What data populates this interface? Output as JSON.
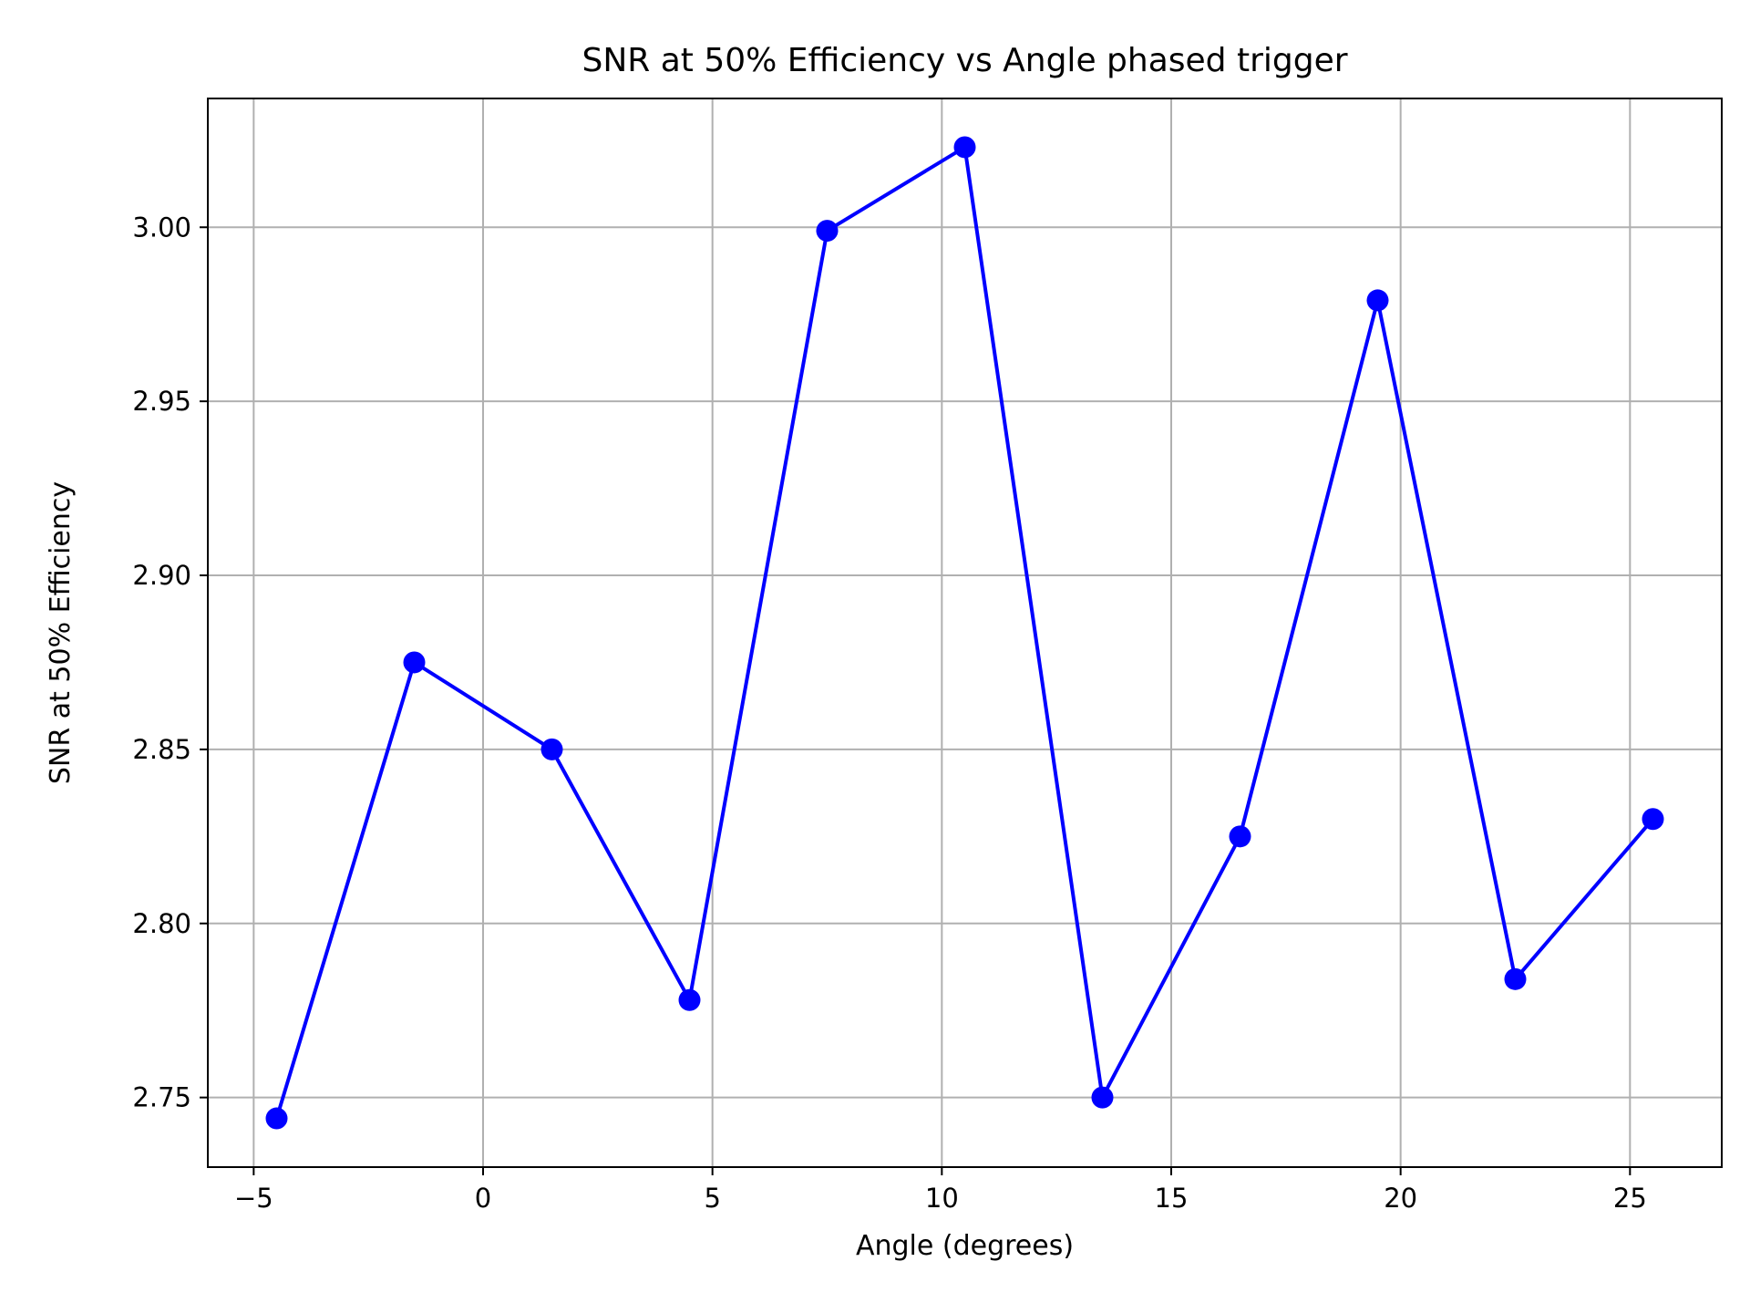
{
  "chart_data": {
    "type": "line",
    "title": "SNR at 50% Efficiency vs Angle phased trigger",
    "xlabel": "Angle (degrees)",
    "ylabel": "SNR at 50% Efficiency",
    "xlim": [
      -6,
      27
    ],
    "ylim": [
      2.73,
      3.037
    ],
    "grid": true,
    "xticks": [
      -5,
      0,
      5,
      10,
      15,
      20,
      25
    ],
    "xtick_labels": [
      "−5",
      "0",
      "5",
      "10",
      "15",
      "20",
      "25"
    ],
    "yticks": [
      2.75,
      2.8,
      2.85,
      2.9,
      2.95,
      3.0
    ],
    "ytick_labels": [
      "2.75",
      "2.80",
      "2.85",
      "2.90",
      "2.95",
      "3.00"
    ],
    "series": [
      {
        "name": "SNR",
        "color": "#0000ff",
        "marker": "circle",
        "x": [
          -4.5,
          -1.5,
          1.5,
          4.5,
          7.5,
          10.5,
          13.5,
          16.5,
          19.5,
          22.5,
          25.5
        ],
        "y": [
          2.744,
          2.875,
          2.85,
          2.778,
          2.999,
          3.023,
          2.75,
          2.825,
          2.979,
          2.784,
          2.83
        ]
      }
    ]
  }
}
